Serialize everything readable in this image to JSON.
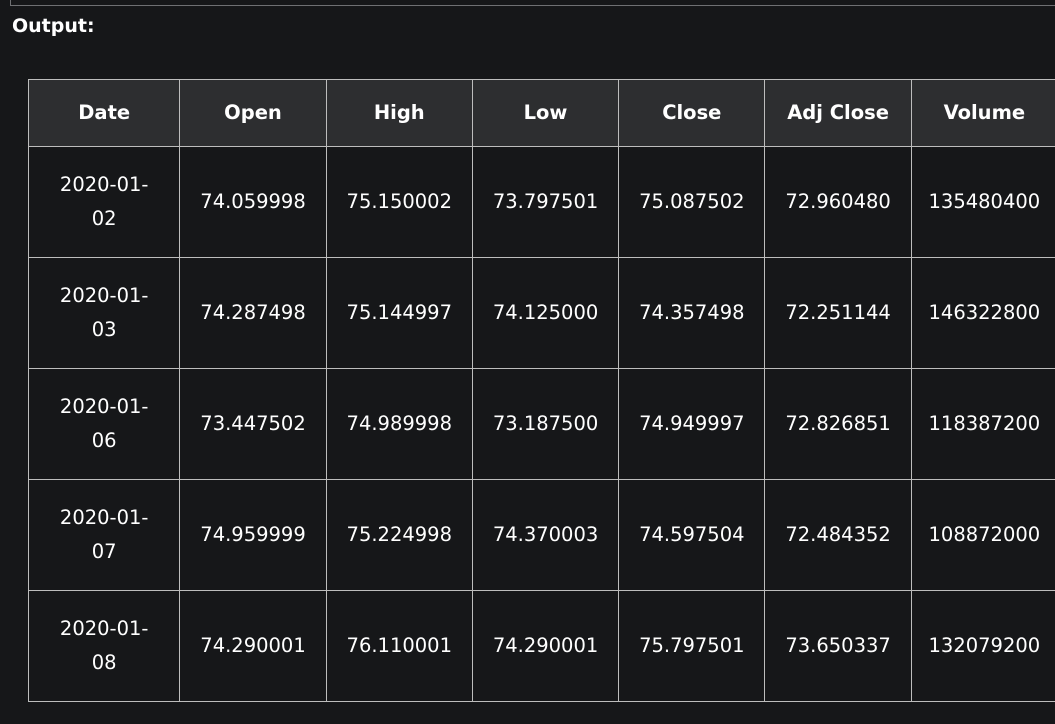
{
  "output_label": "Output:",
  "table": {
    "columns": [
      "Date",
      "Open",
      "High",
      "Low",
      "Close",
      "Adj Close",
      "Volume"
    ],
    "rows": [
      {
        "date": [
          "2020-01-",
          "02"
        ],
        "open": "74.059998",
        "high": "75.150002",
        "low": "73.797501",
        "close": "75.087502",
        "adj_close": "72.960480",
        "volume": "135480400"
      },
      {
        "date": [
          "2020-01-",
          "03"
        ],
        "open": "74.287498",
        "high": "75.144997",
        "low": "74.125000",
        "close": "74.357498",
        "adj_close": "72.251144",
        "volume": "146322800"
      },
      {
        "date": [
          "2020-01-",
          "06"
        ],
        "open": "73.447502",
        "high": "74.989998",
        "low": "73.187500",
        "close": "74.949997",
        "adj_close": "72.826851",
        "volume": "118387200"
      },
      {
        "date": [
          "2020-01-",
          "07"
        ],
        "open": "74.959999",
        "high": "75.224998",
        "low": "74.370003",
        "close": "74.597504",
        "adj_close": "72.484352",
        "volume": "108872000"
      },
      {
        "date": [
          "2020-01-",
          "08"
        ],
        "open": "74.290001",
        "high": "76.110001",
        "low": "74.290001",
        "close": "75.797501",
        "adj_close": "73.650337",
        "volume": "132079200"
      }
    ]
  }
}
